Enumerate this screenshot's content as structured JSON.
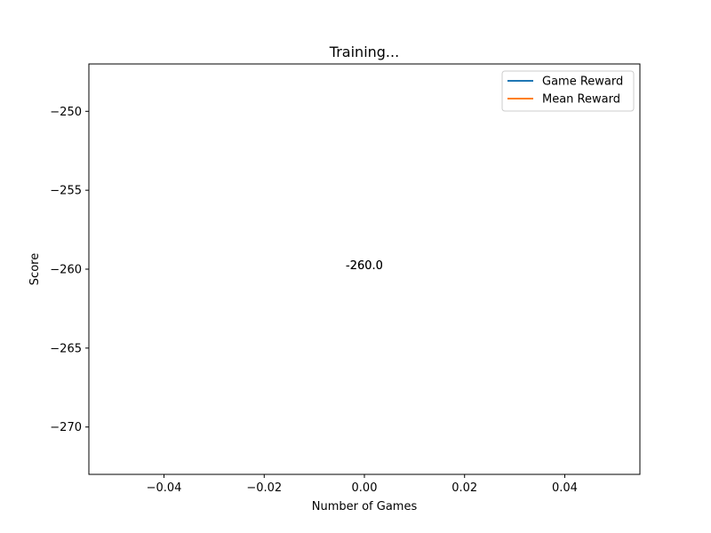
{
  "chart_data": {
    "type": "line",
    "title": "Training...",
    "xlabel": "Number of Games",
    "ylabel": "Score",
    "xlim": [
      -0.055,
      0.055
    ],
    "ylim": [
      -273,
      -247
    ],
    "x_ticks": [
      -0.04,
      -0.02,
      0.0,
      0.02,
      0.04
    ],
    "x_tick_labels": [
      "−0.04",
      "−0.02",
      "0.00",
      "0.02",
      "0.04"
    ],
    "y_ticks": [
      -250,
      -255,
      -260,
      -265,
      -270
    ],
    "y_tick_labels": [
      "−250",
      "−255",
      "−260",
      "−265",
      "−270"
    ],
    "series": [
      {
        "name": "Game Reward",
        "color": "#1f77b4",
        "x": [
          0
        ],
        "y": [
          -260.0
        ]
      },
      {
        "name": "Mean Reward",
        "color": "#ff7f0e",
        "x": [
          0
        ],
        "y": [
          -260.0
        ]
      }
    ],
    "annotations": [
      {
        "text": "-260.0",
        "x": 0,
        "y": -260.0
      },
      {
        "text": "-260.0",
        "x": 0,
        "y": -260.0
      }
    ],
    "legend_position": "top-right",
    "grid": false
  }
}
